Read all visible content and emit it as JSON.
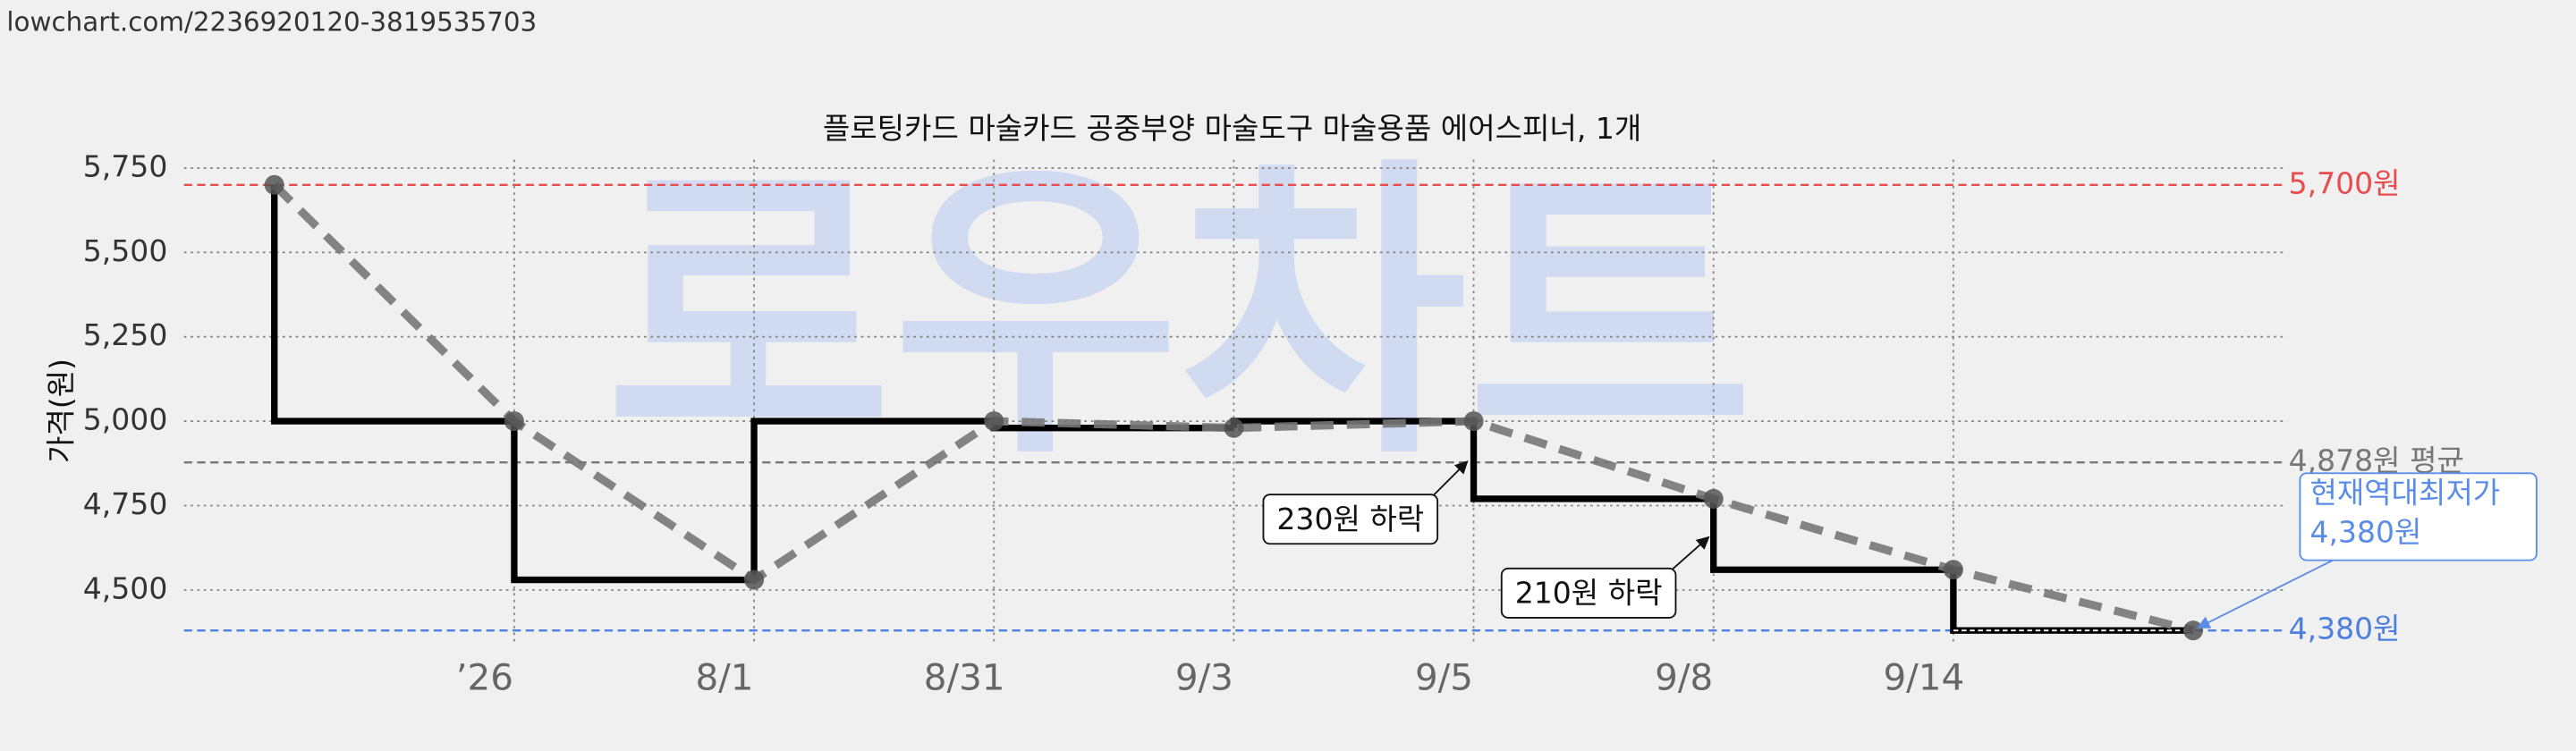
{
  "url": "lowchart.com/2236920120-3819535703",
  "watermark": "로우차트",
  "chart_data": {
    "type": "line",
    "step": "pre",
    "title": "플로팅카드 마술카드 공중부양 마술도구 마술용품 에어스피너, 1개",
    "y_label": "가격(원)",
    "categories": [
      null,
      "’26",
      "8/1",
      "8/31",
      "9/3",
      "9/5",
      "9/8",
      "9/14",
      null
    ],
    "series": [
      {
        "color": "#000000",
        "trend_color": "#777777",
        "point_color": "#555555",
        "values": [
          5700,
          5000,
          4530,
          5000,
          4980,
          5000,
          4770,
          4560,
          4380
        ]
      }
    ],
    "ylim": [
      4340,
      5775
    ],
    "yticks": [
      {
        "value": 4500,
        "label": "4,500"
      },
      {
        "value": 4750,
        "label": "4,750"
      },
      {
        "value": 5000,
        "label": "5,000"
      },
      {
        "value": 5250,
        "label": "5,250"
      },
      {
        "value": 5500,
        "label": "5,500"
      },
      {
        "value": 5750,
        "label": "5,750"
      }
    ],
    "grid": true,
    "reference_lines": [
      {
        "value": 5700,
        "label": "5,700원",
        "color": "#e84c4c"
      },
      {
        "value": 4878,
        "label": "4,878원 평균",
        "color": "#777777"
      },
      {
        "value": 4380,
        "label": "4,380원",
        "color": "#4d7fe0"
      }
    ],
    "annotations": [
      {
        "text": "230원 하락"
      },
      {
        "text": "210원 하락"
      }
    ],
    "callout": {
      "lines": [
        "현재역대최저가",
        "4,380원"
      ],
      "color": "#5b8de8"
    }
  }
}
